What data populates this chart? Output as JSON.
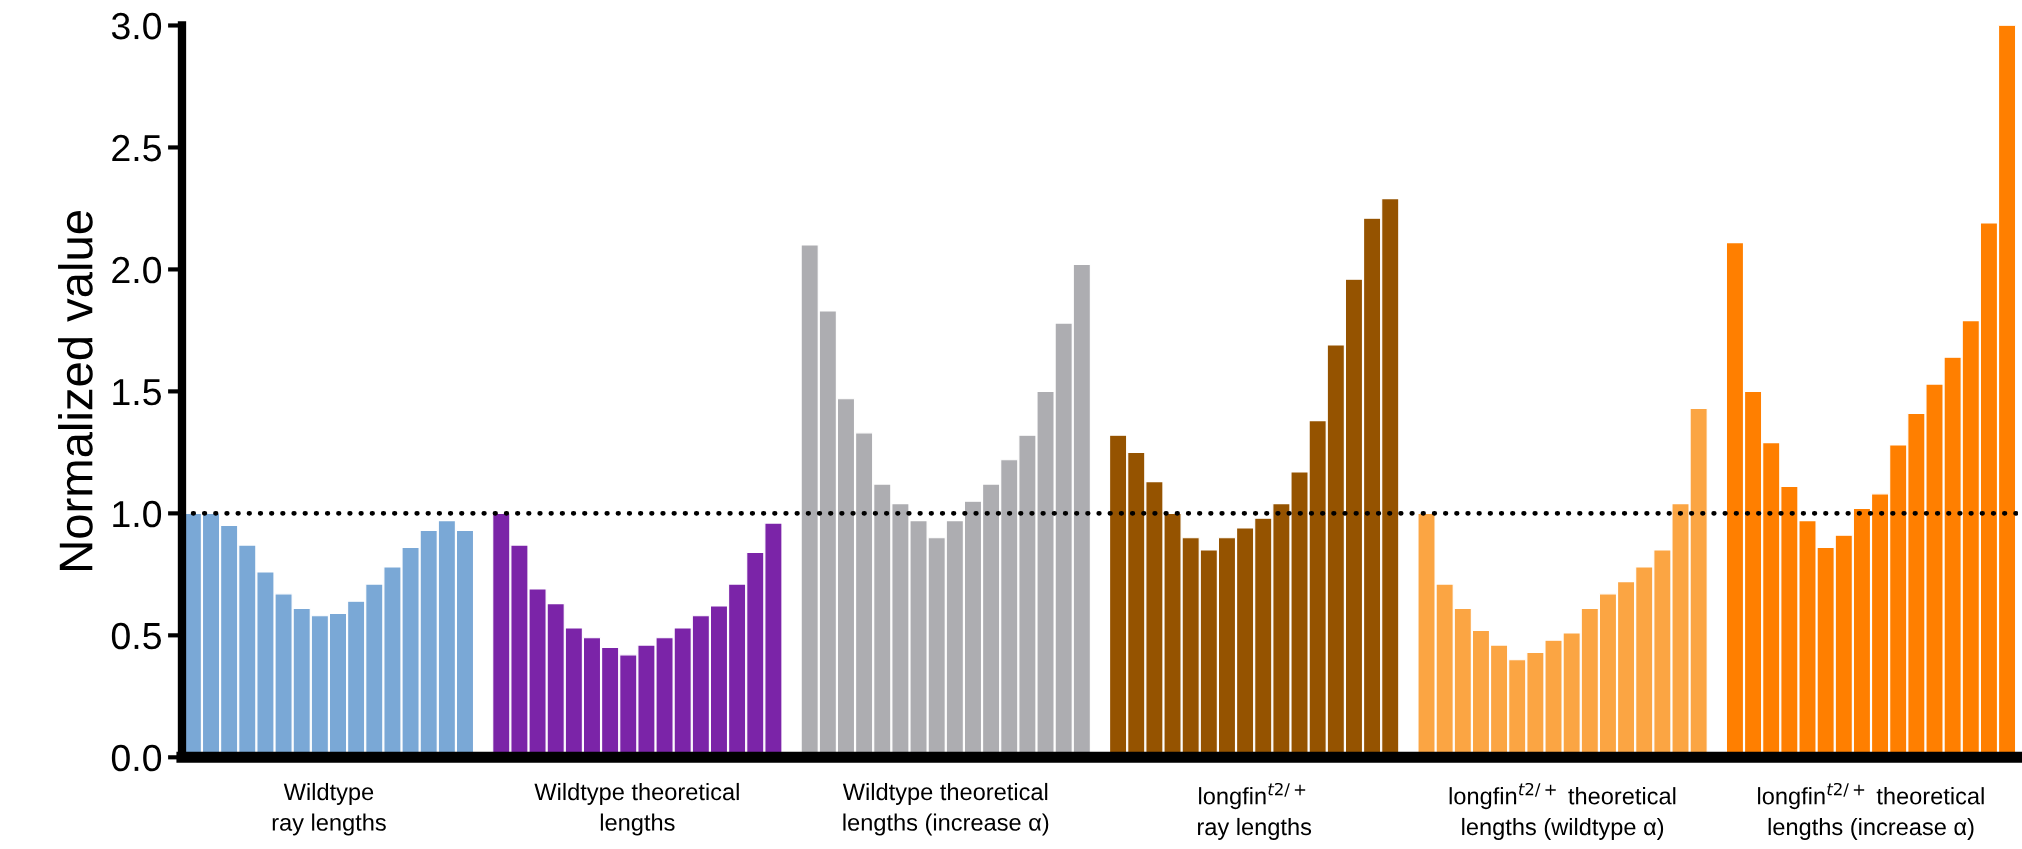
{
  "chart_data": {
    "type": "bar",
    "ylabel": "Normalized value",
    "categories": [
      null,
      null,
      null,
      null,
      null,
      null,
      null,
      null,
      null,
      null,
      null,
      null,
      null,
      null,
      null,
      null,
      null,
      null,
      null,
      null,
      null,
      null,
      null,
      null,
      null,
      null,
      null,
      null,
      null,
      null,
      null,
      null,
      null,
      null,
      null,
      null,
      null,
      null,
      null,
      null,
      null,
      null,
      null,
      null,
      null,
      null,
      null,
      null,
      null,
      null,
      null,
      null,
      null,
      null,
      null,
      null,
      null,
      null,
      null,
      null,
      null,
      null,
      null,
      null,
      null,
      null,
      null,
      null,
      null,
      null,
      null,
      null,
      null,
      null,
      null,
      null,
      null,
      null,
      null,
      null,
      null,
      null,
      null,
      null,
      null,
      null,
      null,
      null,
      null,
      null,
      null,
      null,
      null,
      null,
      null,
      null,
      null,
      null,
      null,
      null,
      null
    ],
    "series": [
      {
        "name": "Wildtype\nray lengths",
        "color": "#7aa8d6",
        "values": [
          1.0,
          1.0,
          0.95,
          0.87,
          0.76,
          0.67,
          0.61,
          0.58,
          0.59,
          0.64,
          0.71,
          0.78,
          0.86,
          0.93,
          0.97,
          0.93,
          null,
          null,
          null,
          null,
          null,
          null,
          null,
          null,
          null,
          null,
          null,
          null,
          null,
          null,
          null,
          null,
          null,
          null,
          null,
          null,
          null,
          null,
          null,
          null,
          null,
          null,
          null,
          null,
          null,
          null,
          null,
          null,
          null,
          null,
          null,
          null,
          null,
          null,
          null,
          null,
          null,
          null,
          null,
          null,
          null,
          null,
          null,
          null,
          null,
          null,
          null,
          null,
          null,
          null,
          null,
          null,
          null,
          null,
          null,
          null,
          null,
          null,
          null,
          null,
          null,
          null,
          null,
          null,
          null,
          null,
          null,
          null,
          null,
          null,
          null,
          null,
          null,
          null,
          null,
          null,
          null,
          null,
          null,
          null,
          null
        ]
      },
      {
        "name": "Wildtype theoretical\nlengths",
        "color": "#7b24a8",
        "values": [
          null,
          null,
          null,
          null,
          null,
          null,
          null,
          null,
          null,
          null,
          null,
          null,
          null,
          null,
          null,
          null,
          null,
          1.0,
          0.87,
          0.69,
          0.63,
          0.53,
          0.49,
          0.45,
          0.42,
          0.46,
          0.49,
          0.53,
          0.58,
          0.62,
          0.71,
          0.84,
          0.96,
          null,
          null,
          null,
          null,
          null,
          null,
          null,
          null,
          null,
          null,
          null,
          null,
          null,
          null,
          null,
          null,
          null,
          null,
          null,
          null,
          null,
          null,
          null,
          null,
          null,
          null,
          null,
          null,
          null,
          null,
          null,
          null,
          null,
          null,
          null,
          null,
          null,
          null,
          null,
          null,
          null,
          null,
          null,
          null,
          null,
          null,
          null,
          null,
          null,
          null,
          null,
          null,
          null,
          null,
          null,
          null,
          null,
          null,
          null,
          null,
          null,
          null,
          null,
          null,
          null,
          null,
          null,
          null
        ]
      },
      {
        "name": "Wildtype theoretical\nlengths (increase α)",
        "color": "#adadb1",
        "values": [
          null,
          null,
          null,
          null,
          null,
          null,
          null,
          null,
          null,
          null,
          null,
          null,
          null,
          null,
          null,
          null,
          null,
          null,
          null,
          null,
          null,
          null,
          null,
          null,
          null,
          null,
          null,
          null,
          null,
          null,
          null,
          null,
          null,
          null,
          2.1,
          1.83,
          1.47,
          1.33,
          1.12,
          1.04,
          0.97,
          0.9,
          0.97,
          1.05,
          1.12,
          1.22,
          1.32,
          1.5,
          1.78,
          2.02,
          null,
          null,
          null,
          null,
          null,
          null,
          null,
          null,
          null,
          null,
          null,
          null,
          null,
          null,
          null,
          null,
          null,
          null,
          null,
          null,
          null,
          null,
          null,
          null,
          null,
          null,
          null,
          null,
          null,
          null,
          null,
          null,
          null,
          null,
          null,
          null,
          null,
          null,
          null,
          null,
          null,
          null,
          null,
          null,
          null,
          null,
          null,
          null,
          null,
          null,
          null
        ]
      },
      {
        "name": "longfin$^{t2/+}$\nray lengths",
        "color": "#955300",
        "values": [
          null,
          null,
          null,
          null,
          null,
          null,
          null,
          null,
          null,
          null,
          null,
          null,
          null,
          null,
          null,
          null,
          null,
          null,
          null,
          null,
          null,
          null,
          null,
          null,
          null,
          null,
          null,
          null,
          null,
          null,
          null,
          null,
          null,
          null,
          null,
          null,
          null,
          null,
          null,
          null,
          null,
          null,
          null,
          null,
          null,
          null,
          null,
          null,
          null,
          null,
          null,
          1.32,
          1.25,
          1.13,
          1.0,
          0.9,
          0.85,
          0.9,
          0.94,
          0.98,
          1.04,
          1.17,
          1.38,
          1.69,
          1.96,
          2.21,
          2.29,
          null,
          null,
          null,
          null,
          null,
          null,
          null,
          null,
          null,
          null,
          null,
          null,
          null,
          null,
          null,
          null,
          null,
          null,
          null,
          null,
          null,
          null,
          null,
          null,
          null,
          null,
          null,
          null,
          null,
          null,
          null,
          null,
          null,
          null
        ]
      },
      {
        "name": "longfin$^{t2/+}$ theoretical\nlengths (wildtype α)",
        "color": "#fba543",
        "values": [
          null,
          null,
          null,
          null,
          null,
          null,
          null,
          null,
          null,
          null,
          null,
          null,
          null,
          null,
          null,
          null,
          null,
          null,
          null,
          null,
          null,
          null,
          null,
          null,
          null,
          null,
          null,
          null,
          null,
          null,
          null,
          null,
          null,
          null,
          null,
          null,
          null,
          null,
          null,
          null,
          null,
          null,
          null,
          null,
          null,
          null,
          null,
          null,
          null,
          null,
          null,
          null,
          null,
          null,
          null,
          null,
          null,
          null,
          null,
          null,
          null,
          null,
          null,
          null,
          null,
          null,
          null,
          null,
          1.0,
          0.71,
          0.61,
          0.52,
          0.46,
          0.4,
          0.43,
          0.48,
          0.51,
          0.61,
          0.67,
          0.72,
          0.78,
          0.85,
          1.04,
          1.43,
          null,
          null,
          null,
          null,
          null,
          null,
          null,
          null,
          null,
          null,
          null,
          null,
          null,
          null,
          null,
          null,
          null
        ]
      },
      {
        "name": "longfin$^{t2/+}$ theoretical\nlengths (increase α)",
        "color": "#ff7f00",
        "values": [
          null,
          null,
          null,
          null,
          null,
          null,
          null,
          null,
          null,
          null,
          null,
          null,
          null,
          null,
          null,
          null,
          null,
          null,
          null,
          null,
          null,
          null,
          null,
          null,
          null,
          null,
          null,
          null,
          null,
          null,
          null,
          null,
          null,
          null,
          null,
          null,
          null,
          null,
          null,
          null,
          null,
          null,
          null,
          null,
          null,
          null,
          null,
          null,
          null,
          null,
          null,
          null,
          null,
          null,
          null,
          null,
          null,
          null,
          null,
          null,
          null,
          null,
          null,
          null,
          null,
          null,
          null,
          null,
          null,
          null,
          null,
          null,
          null,
          null,
          null,
          null,
          null,
          null,
          null,
          null,
          null,
          null,
          null,
          null,
          null,
          2.11,
          1.5,
          1.29,
          1.11,
          0.97,
          0.86,
          0.91,
          1.02,
          1.08,
          1.28,
          1.41,
          1.53,
          1.64,
          1.79,
          2.19,
          3.0
        ]
      }
    ],
    "ylim": [
      0,
      3
    ],
    "yticks": [
      {
        "value": 0,
        "label": "0.0"
      },
      {
        "value": 0.5,
        "label": "0.5"
      },
      {
        "value": 1,
        "label": "1.0"
      },
      {
        "value": 1.5,
        "label": "1.5"
      },
      {
        "value": 2,
        "label": "2.0"
      },
      {
        "value": 2.5,
        "label": "2.5"
      },
      {
        "value": 3,
        "label": "3.0"
      }
    ],
    "ref_lines": [
      {
        "axis": "y",
        "value": 1,
        "color": "#000000",
        "line_style": "dotted"
      }
    ],
    "grid": false,
    "legend": false
  }
}
